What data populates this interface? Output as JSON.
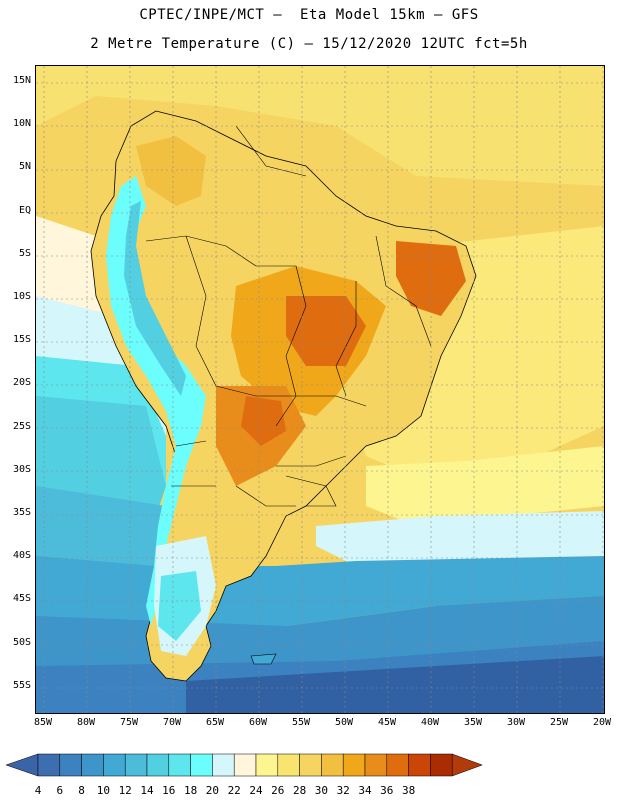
{
  "title_line1": "CPTEC/INPE/MCT –  Eta Model 15km – GFS",
  "title_line2": "2 Metre Temperature (C) – 15/12/2020 12UTC fct=5h",
  "lat_labels": [
    "15N",
    "10N",
    "5N",
    "EQ",
    "5S",
    "10S",
    "15S",
    "20S",
    "25S",
    "30S",
    "35S",
    "40S",
    "45S",
    "50S",
    "55S"
  ],
  "lon_labels": [
    "85W",
    "80W",
    "75W",
    "70W",
    "65W",
    "60W",
    "55W",
    "50W",
    "45W",
    "40W",
    "35W",
    "30W",
    "25W",
    "20W"
  ],
  "colorbar": {
    "labels": [
      "4",
      "6",
      "8",
      "10",
      "12",
      "14",
      "16",
      "18",
      "20",
      "22",
      "24",
      "26",
      "28",
      "30",
      "32",
      "34",
      "36",
      "38"
    ],
    "colors": [
      "#3d6fb0",
      "#3c82c0",
      "#3e95c9",
      "#41a9d4",
      "#4cbcda",
      "#52cfe0",
      "#5de6ee",
      "#6cfdfd",
      "#d5f7fb",
      "#fff6dc",
      "#fdf58f",
      "#f9e470",
      "#f5d462",
      "#f2c040",
      "#f0a81a",
      "#e88d1b",
      "#df6d10",
      "#c94508",
      "#aa2c03"
    ],
    "left_arrow_color": "#3a63a8",
    "right_arrow_color": "#b33a0b"
  },
  "colors": {
    "ocean_warm": "#f7de6e",
    "ocean_mid": "#fdf28a",
    "ocean_cool": "#4cbcda",
    "ocean_cold": "#3c82c0",
    "ocean_polar": "#2f5a99"
  }
}
